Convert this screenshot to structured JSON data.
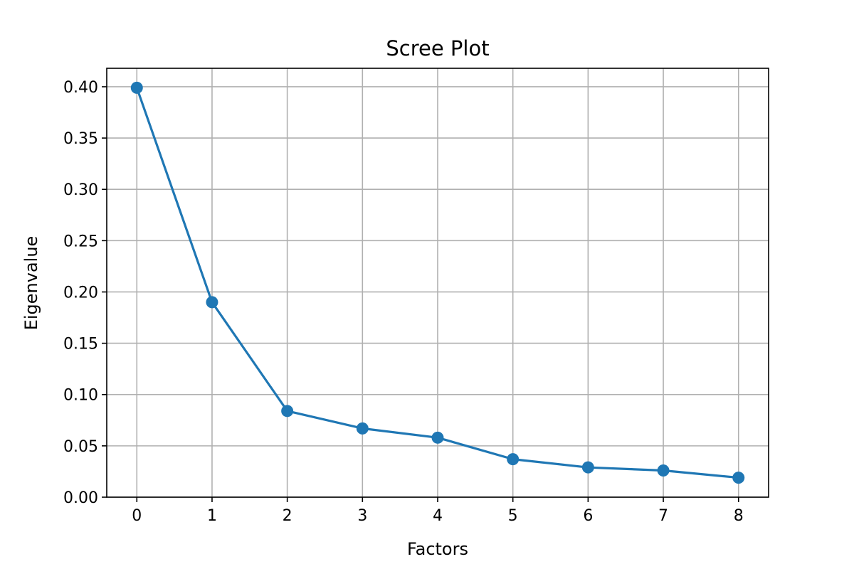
{
  "chart_data": {
    "type": "line",
    "title": "Scree Plot",
    "xlabel": "Factors",
    "ylabel": "Eigenvalue",
    "x": [
      0,
      1,
      2,
      3,
      4,
      5,
      6,
      7,
      8
    ],
    "series": [
      {
        "values": [
          0.399,
          0.19,
          0.084,
          0.067,
          0.058,
          0.037,
          0.029,
          0.026,
          0.019
        ]
      }
    ],
    "xticks": [
      "0",
      "1",
      "2",
      "3",
      "4",
      "5",
      "6",
      "7",
      "8"
    ],
    "yticks": [
      "0.00",
      "0.05",
      "0.10",
      "0.15",
      "0.20",
      "0.25",
      "0.30",
      "0.35",
      "0.40"
    ],
    "xlim": [
      -0.4,
      8.4
    ],
    "ylim": [
      0.0,
      0.418
    ],
    "grid": true,
    "markers": true,
    "color": "#1f77b4"
  }
}
